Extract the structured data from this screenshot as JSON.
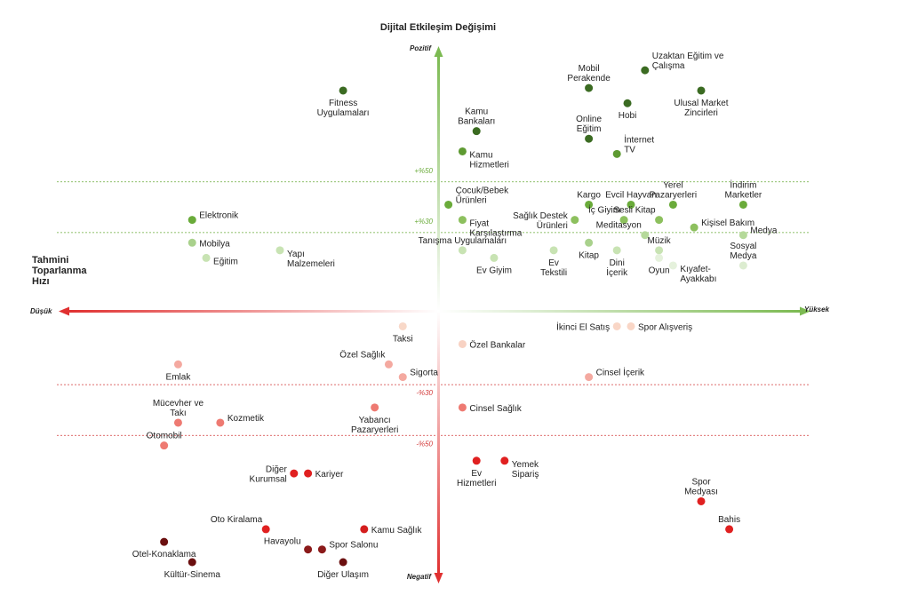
{
  "chart_data": {
    "type": "scatter",
    "title": "Dijital Etkileşim Değişimi",
    "ylabel": "Dijital Etkileşim Değişimi",
    "xlabel": "Tahmini Toparlanma Hızı",
    "x_end_low": "Düşük",
    "x_end_high": "Yüksek",
    "y_end_high": "Pozitif",
    "y_end_low": "Negatif",
    "xlim": [
      0,
      100
    ],
    "ylim": [
      -100,
      100
    ],
    "grid": false,
    "reference_lines": [
      {
        "y": 50,
        "label": "+%50",
        "color": "#6aab3a"
      },
      {
        "y": 30,
        "label": "+%30",
        "color": "#6aab3a"
      },
      {
        "y": -30,
        "label": "-%30",
        "color": "#d23a3a"
      },
      {
        "y": -50,
        "label": "-%50",
        "color": "#d23a3a"
      }
    ],
    "points": [
      {
        "label": "Fitness\nUygulamaları",
        "x": 39.0,
        "y": 86,
        "color": "#3b6b22",
        "pos": "below"
      },
      {
        "label": "Mobil\nPerakende",
        "x": 74.0,
        "y": 87,
        "color": "#3b6b22",
        "pos": "above"
      },
      {
        "label": "Uzaktan Eğitim ve\nÇalışma",
        "x": 82.0,
        "y": 94,
        "color": "#3b6b22",
        "pos": "right-up"
      },
      {
        "label": "Ulusal Market\nZincirleri",
        "x": 90.0,
        "y": 86,
        "color": "#3b6b22",
        "pos": "below"
      },
      {
        "label": "Hobi",
        "x": 79.5,
        "y": 81,
        "color": "#3b6b22",
        "pos": "below"
      },
      {
        "label": "Kamu\nBankaları",
        "x": 58.0,
        "y": 70,
        "color": "#3b6b22",
        "pos": "above"
      },
      {
        "label": "Online\nEğitim",
        "x": 74.0,
        "y": 67,
        "color": "#3b6b22",
        "pos": "above"
      },
      {
        "label": "İnternet\nTV",
        "x": 78.0,
        "y": 61,
        "color": "#5e9a32",
        "pos": "right-up"
      },
      {
        "label": "Kamu\nHizmetleri",
        "x": 56.0,
        "y": 62,
        "color": "#5e9a32",
        "pos": "right-down"
      },
      {
        "label": "Çocuk/Bebek\nÜrünleri",
        "x": 54.0,
        "y": 41,
        "color": "#6aab3a",
        "pos": "right-up"
      },
      {
        "label": "Kargo",
        "x": 74.0,
        "y": 41,
        "color": "#6aab3a",
        "pos": "above"
      },
      {
        "label": "Evcil Hayvan",
        "x": 80.0,
        "y": 41,
        "color": "#6aab3a",
        "pos": "above"
      },
      {
        "label": "Yerel\nPazaryerleri",
        "x": 86.0,
        "y": 41,
        "color": "#6aab3a",
        "pos": "above"
      },
      {
        "label": "İndirim\nMarketler",
        "x": 96.0,
        "y": 41,
        "color": "#6aab3a",
        "pos": "above"
      },
      {
        "label": "Elektronik",
        "x": 17.5,
        "y": 35,
        "color": "#6aab3a",
        "pos": "right-up"
      },
      {
        "label": "Fiyat\nKarşılaştırma",
        "x": 56.0,
        "y": 35,
        "color": "#8dc05e",
        "pos": "right-down"
      },
      {
        "label": "Sağlık Destek\nÜrünleri",
        "x": 72.0,
        "y": 35,
        "color": "#8dc05e",
        "pos": "left"
      },
      {
        "label": "İç Giyim",
        "x": 79.0,
        "y": 35,
        "color": "#8dc05e",
        "pos": "above-left"
      },
      {
        "label": "Sesli Kitap",
        "x": 84.0,
        "y": 35,
        "color": "#8dc05e",
        "pos": "above-left"
      },
      {
        "label": "Kişisel Bakım",
        "x": 89.0,
        "y": 32,
        "color": "#8dc05e",
        "pos": "right-up"
      },
      {
        "label": "Medya",
        "x": 96.0,
        "y": 29,
        "color": "#b5d99a",
        "pos": "right-up"
      },
      {
        "label": "Meditasyon",
        "x": 82.0,
        "y": 29,
        "color": "#b5d99a",
        "pos": "above-left"
      },
      {
        "label": "Mobilya",
        "x": 17.5,
        "y": 26,
        "color": "#a9d18c",
        "pos": "right"
      },
      {
        "label": "Kitap",
        "x": 74.0,
        "y": 26,
        "color": "#a9d18c",
        "pos": "below"
      },
      {
        "label": "Müzik",
        "x": 84.0,
        "y": 23,
        "color": "#c8e3b3",
        "pos": "above"
      },
      {
        "label": "Tanışma Uygulamaları",
        "x": 56.0,
        "y": 23,
        "color": "#c8e3b3",
        "pos": "above"
      },
      {
        "label": "Ev\nTekstili",
        "x": 69.0,
        "y": 23,
        "color": "#c8e3b3",
        "pos": "below"
      },
      {
        "label": "Dini\nİçerik",
        "x": 78.0,
        "y": 23,
        "color": "#c8e3b3",
        "pos": "below"
      },
      {
        "label": "Sosyal\nMedya",
        "x": 96.0,
        "y": 17,
        "color": "#dcecd0",
        "pos": "above"
      },
      {
        "label": "Yapı\nMalzemeleri",
        "x": 30.0,
        "y": 23,
        "color": "#c8e3b3",
        "pos": "right-down"
      },
      {
        "label": "Eğitim",
        "x": 19.5,
        "y": 20,
        "color": "#c8e3b3",
        "pos": "right-down"
      },
      {
        "label": "Ev Giyim",
        "x": 60.5,
        "y": 20,
        "color": "#c8e3b3",
        "pos": "below"
      },
      {
        "label": "Oyun",
        "x": 84.0,
        "y": 20,
        "color": "#e5f1dc",
        "pos": "below"
      },
      {
        "label": "Kıyafet-\nAyakkabı",
        "x": 86.0,
        "y": 17,
        "color": "#e5f1dc",
        "pos": "right-down"
      },
      {
        "label": "Taksi",
        "x": 47.5,
        "y": -7,
        "color": "#f8d8c8",
        "pos": "below"
      },
      {
        "label": "Özel Bankalar",
        "x": 56.0,
        "y": -14,
        "color": "#f8d2c3",
        "pos": "right"
      },
      {
        "label": "İkinci El Satış",
        "x": 78.0,
        "y": -7,
        "color": "#f9d6c6",
        "pos": "left"
      },
      {
        "label": "Spor Alışveriş",
        "x": 80.0,
        "y": -7,
        "color": "#f9d6c6",
        "pos": "right"
      },
      {
        "label": "Özel Sağlık",
        "x": 45.5,
        "y": -22,
        "color": "#f4a9a0",
        "pos": "above-left"
      },
      {
        "label": "Sigorta",
        "x": 47.5,
        "y": -27,
        "color": "#f4a9a0",
        "pos": "right-up"
      },
      {
        "label": "Emlak",
        "x": 15.5,
        "y": -22,
        "color": "#f4a9a0",
        "pos": "below"
      },
      {
        "label": "Cinsel İçerik",
        "x": 74.0,
        "y": -27,
        "color": "#f4a9a0",
        "pos": "right-up"
      },
      {
        "label": "Yabancı\nPazaryerleri",
        "x": 43.5,
        "y": -39,
        "color": "#ee7a72",
        "pos": "below"
      },
      {
        "label": "Cinsel Sağlık",
        "x": 56.0,
        "y": -39,
        "color": "#ee7a72",
        "pos": "right"
      },
      {
        "label": "Mücevher ve\nTakı",
        "x": 15.5,
        "y": -45,
        "color": "#ee7a72",
        "pos": "above"
      },
      {
        "label": "Kozmetik",
        "x": 21.5,
        "y": -45,
        "color": "#ee7a72",
        "pos": "right-up"
      },
      {
        "label": "Otomobil",
        "x": 13.5,
        "y": -54,
        "color": "#ee7a72",
        "pos": "above"
      },
      {
        "label": "Ev\nHizmetleri",
        "x": 58.0,
        "y": -60,
        "color": "#e02020",
        "pos": "below"
      },
      {
        "label": "Yemek\nSipariş",
        "x": 62.0,
        "y": -60,
        "color": "#e02020",
        "pos": "right-down"
      },
      {
        "label": "Diğer\nKurumsal",
        "x": 32.0,
        "y": -65,
        "color": "#e02020",
        "pos": "left"
      },
      {
        "label": "Kariyer",
        "x": 34.0,
        "y": -65,
        "color": "#e02020",
        "pos": "right"
      },
      {
        "label": "Spor\nMedyası",
        "x": 90.0,
        "y": -76,
        "color": "#e02020",
        "pos": "above"
      },
      {
        "label": "Bahis",
        "x": 94.0,
        "y": -87,
        "color": "#e02020",
        "pos": "above"
      },
      {
        "label": "Oto Kiralama",
        "x": 28.0,
        "y": -87,
        "color": "#e02020",
        "pos": "above-left"
      },
      {
        "label": "Kamu Sağlık",
        "x": 42.0,
        "y": -87,
        "color": "#d41e1e",
        "pos": "right"
      },
      {
        "label": "Havayolu",
        "x": 34.0,
        "y": -95,
        "color": "#8b1a1a",
        "pos": "left-up"
      },
      {
        "label": "Spor Salonu",
        "x": 36.0,
        "y": -95,
        "color": "#8b1a1a",
        "pos": "right-up"
      },
      {
        "label": "Diğer Ulaşım",
        "x": 39.0,
        "y": -100,
        "color": "#6b0f0f",
        "pos": "below"
      },
      {
        "label": "Otel-Konaklama",
        "x": 13.5,
        "y": -92,
        "color": "#6b0f0f",
        "pos": "below"
      },
      {
        "label": "Kültür-Sinema",
        "x": 17.5,
        "y": -100,
        "color": "#6b0f0f",
        "pos": "below"
      }
    ]
  }
}
